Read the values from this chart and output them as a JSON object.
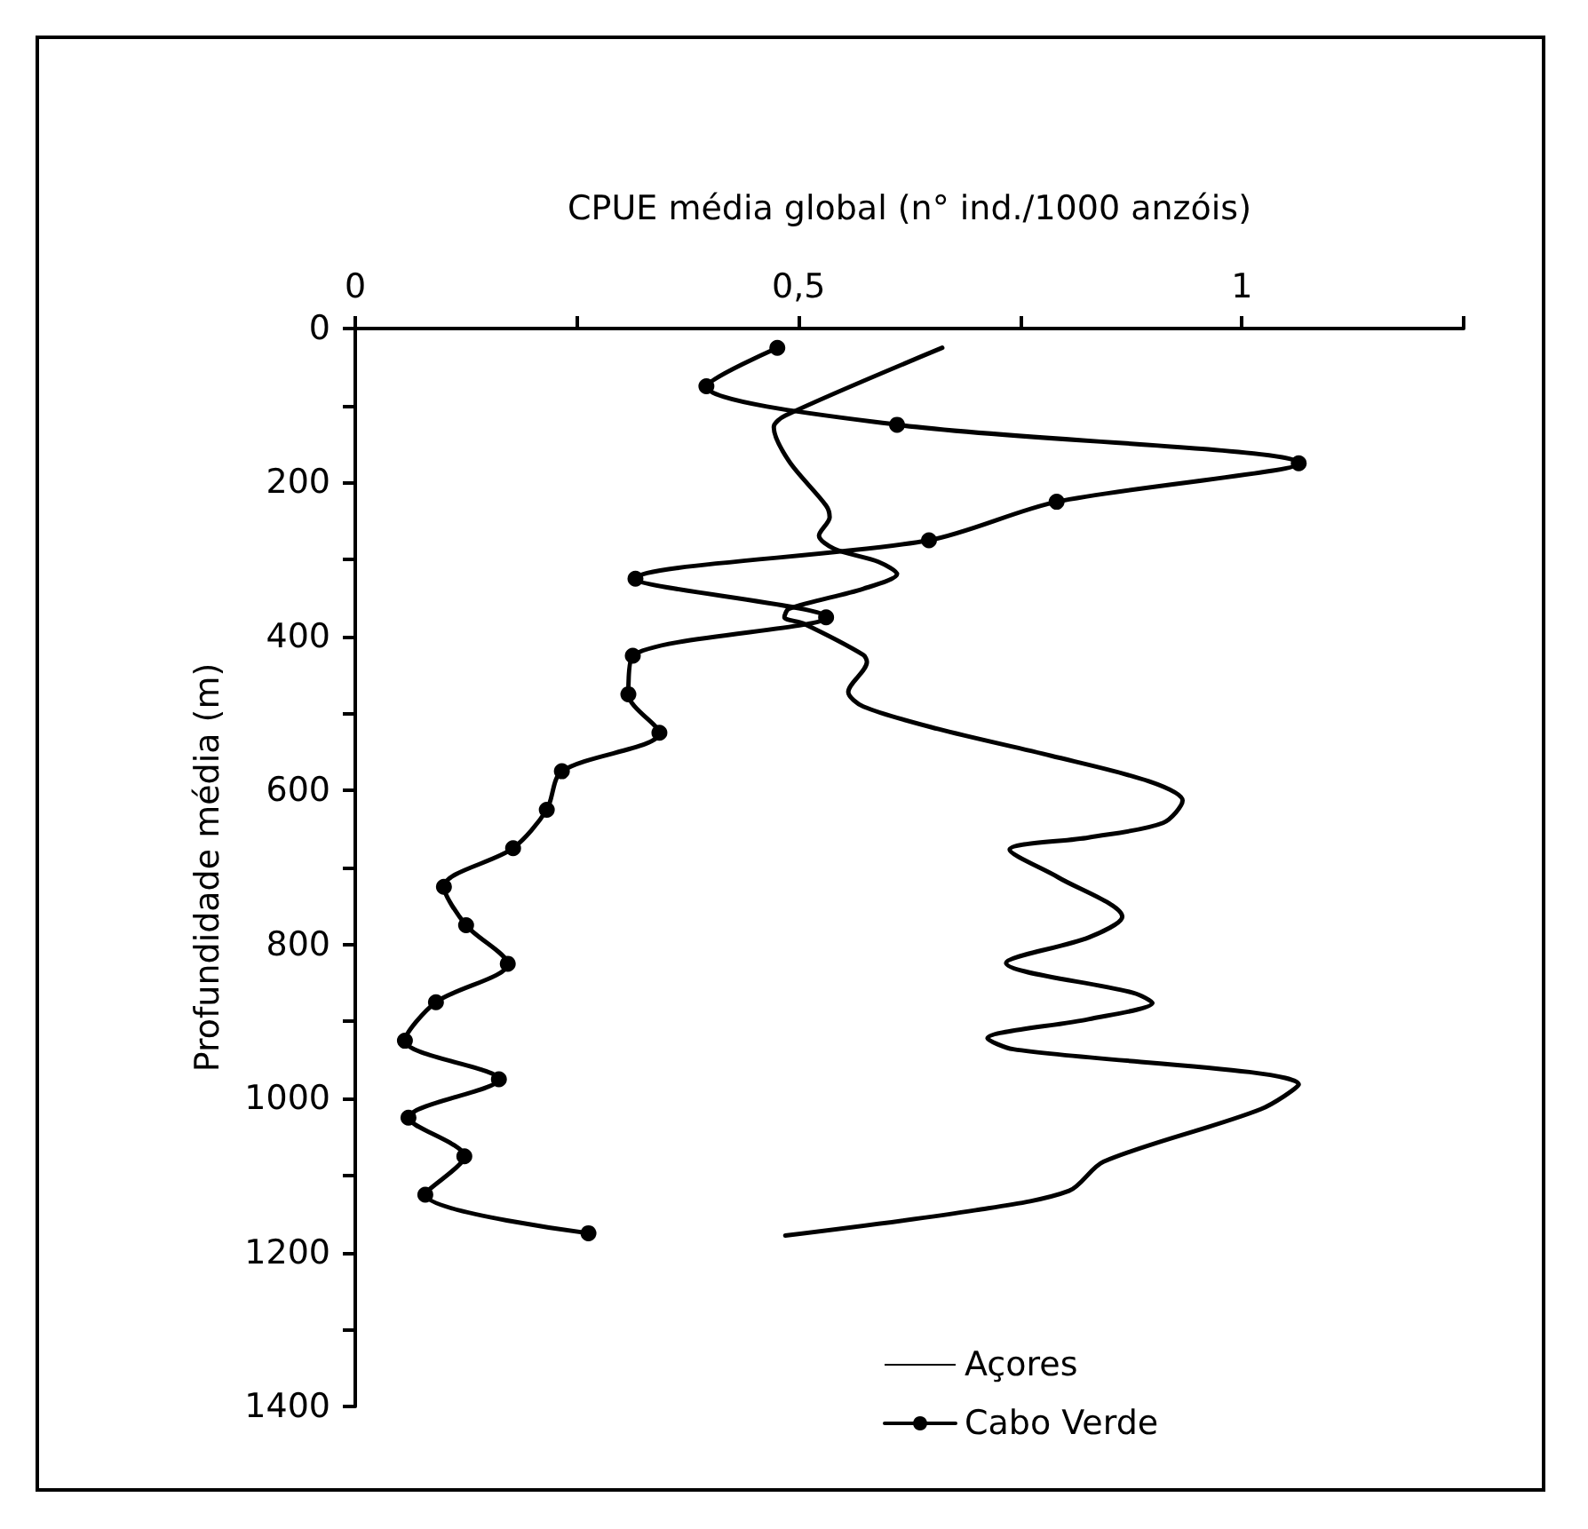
{
  "chart_data": {
    "type": "line",
    "xlabel": "CPUE média global (n° ind./1000 anzóis)",
    "ylabel": "Profundidade média (m)",
    "xlim": [
      0,
      1.25
    ],
    "xticks": [
      0,
      {
        "value": 0.25,
        "label": null
      },
      {
        "value": 0.5,
        "label": "0,5"
      },
      {
        "value": 0.75,
        "label": null
      },
      1,
      {
        "value": 1.25,
        "label": null
      }
    ],
    "ylim": [
      1400,
      0
    ],
    "yticks": [
      0,
      {
        "value": 100,
        "label": null
      },
      200,
      {
        "value": 300,
        "label": null
      },
      400,
      {
        "value": 500,
        "label": null
      },
      600,
      {
        "value": 700,
        "label": null
      },
      800,
      {
        "value": 900,
        "label": null
      },
      1000,
      {
        "value": 1100,
        "label": null
      },
      1200,
      {
        "value": 1300,
        "label": null
      },
      1400
    ],
    "grid": false,
    "legend": "bottom right",
    "series": [
      {
        "name": "Açores",
        "color": "#000000",
        "marker": "none",
        "x": [
          0.662,
          0.485,
          0.472,
          0.489,
          0.531,
          0.535,
          0.523,
          0.54,
          0.59,
          0.611,
          0.573,
          0.489,
          0.484,
          0.505,
          0.573,
          0.577,
          0.556,
          0.573,
          0.657,
          0.785,
          0.895,
          0.933,
          0.911,
          0.827,
          0.738,
          0.793,
          0.865,
          0.827,
          0.734,
          0.878,
          0.899,
          0.827,
          0.713,
          0.742,
          1.064,
          1.021,
          0.844,
          0.805,
          0.7,
          0.485
        ],
        "values": [
          25,
          113,
          128,
          172,
          230,
          245,
          269,
          286,
          303,
          319,
          338,
          364,
          375,
          383,
          424,
          433,
          472,
          491,
          520,
          555,
          588,
          613,
          642,
          661,
          677,
          713,
          764,
          791,
          824,
          863,
          876,
          897,
          922,
          936,
          982,
          1014,
          1082,
          1120,
          1145,
          1178
        ]
      },
      {
        "name": "Cabo Verde",
        "color": "#000000",
        "marker": "circle",
        "x": [
          0.476,
          0.396,
          0.611,
          1.064,
          0.791,
          0.647,
          0.316,
          0.531,
          0.313,
          0.308,
          0.343,
          0.233,
          0.216,
          0.178,
          0.1,
          0.125,
          0.172,
          0.091,
          0.056,
          0.162,
          0.06,
          0.123,
          0.079,
          0.263
        ],
        "values": [
          25,
          75,
          125,
          175,
          225,
          275,
          325,
          375,
          425,
          475,
          525,
          575,
          625,
          675,
          725,
          775,
          825,
          875,
          925,
          975,
          1025,
          1075,
          1125,
          1175
        ]
      }
    ]
  }
}
